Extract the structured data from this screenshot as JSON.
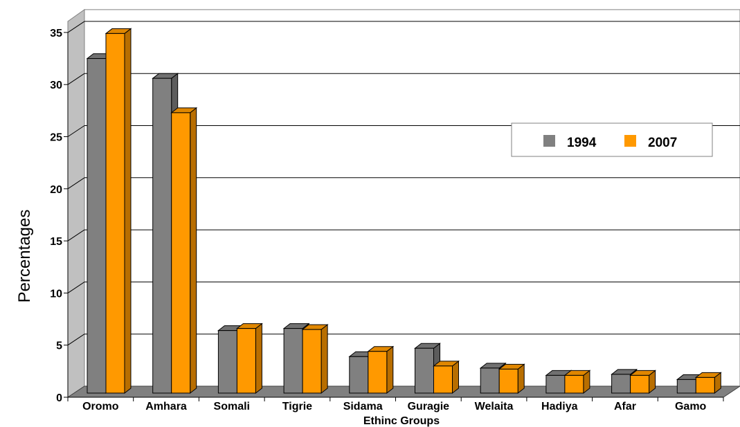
{
  "chart_data": {
    "type": "bar",
    "categories": [
      "Oromo",
      "Amhara",
      "Somali",
      "Tigrie",
      "Sidama",
      "Guragie",
      "Welaita",
      "Hadiya",
      "Afar",
      "Gamo"
    ],
    "series": [
      {
        "name": "1994",
        "values": [
          32.1,
          30.2,
          6.0,
          6.2,
          3.5,
          4.3,
          2.4,
          1.7,
          1.8,
          1.3
        ]
      },
      {
        "name": "2007",
        "values": [
          34.5,
          26.9,
          6.2,
          6.1,
          4.0,
          2.6,
          2.3,
          1.7,
          1.7,
          1.5
        ]
      }
    ],
    "colors": {
      "1994": "#808080",
      "2007": "#FF9900"
    },
    "title": "",
    "xlabel": "Ethinc Groups",
    "ylabel": "Percentages",
    "ylim": [
      0,
      35
    ],
    "yticks": [
      "0",
      "5",
      "10",
      "15",
      "20",
      "25",
      "30",
      "35"
    ],
    "grid": true,
    "legend": "top-right",
    "style": "3d-clustered-column"
  }
}
